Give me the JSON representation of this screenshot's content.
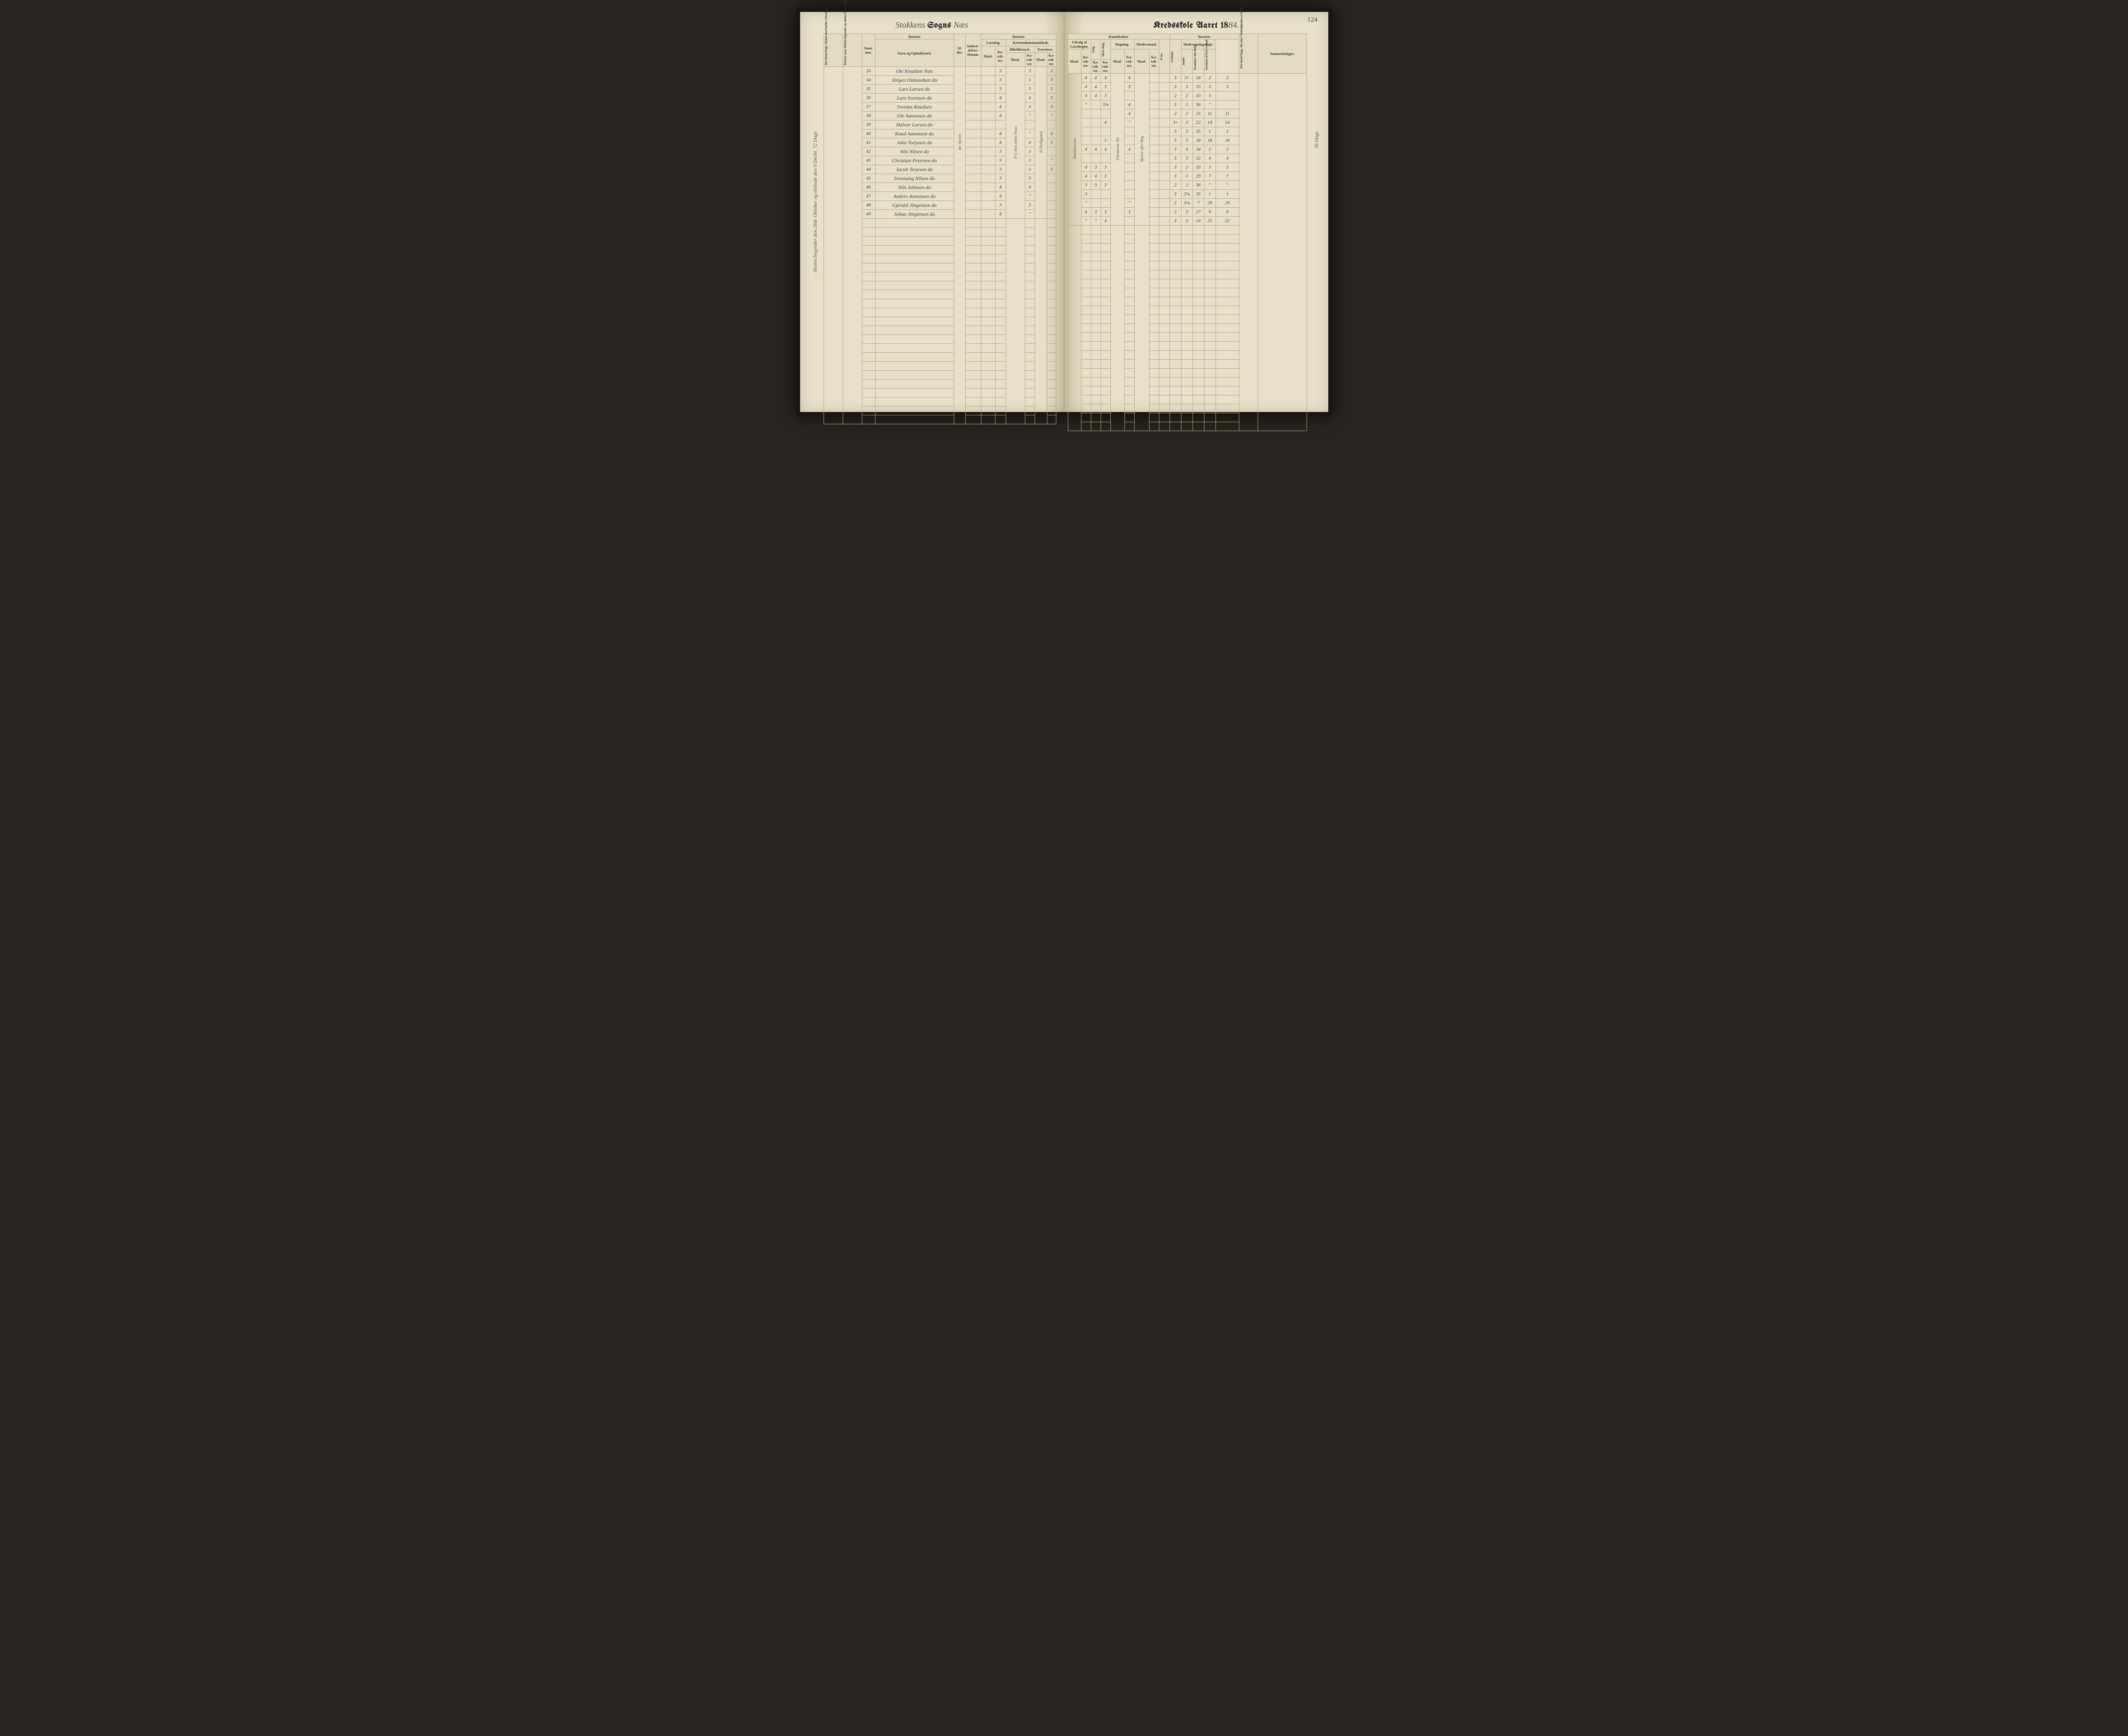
{
  "pageNumber": "124",
  "titleLeft": {
    "script": "Stokkens",
    "print1": "Sogns",
    "script2": "Næs"
  },
  "titleRight": {
    "print": "Kredsskole Aaret 18",
    "year": "84."
  },
  "headersLeft": {
    "col1": "Det Antal Dage, Skolen skal holdes i Kredsen.",
    "col2": "Datum, naar Skolen begynder og slutter hver Omgang.",
    "nummer": "Num-mer.",
    "barnets": "Barnets",
    "navn": "Navn og Opholdssted.",
    "alder": "Al-der.",
    "indtr": "Indtræ-delses-Datum.",
    "barnets2": "Barnets",
    "laesning": "Læsning.",
    "kristendom": "Kristendomskundskab.",
    "maal": "Maal.",
    "karakter": "Ka-rak-ter.",
    "bibel": "Bibelhistorie.",
    "troes": "Troeslære."
  },
  "headersRight": {
    "kundskaber": "Kundskaber.",
    "udvalg": "Udvalg af Læsebogen.",
    "sang": "Sang.",
    "skriv": "Skriv-ning.",
    "regning": "Regning.",
    "modersmaal": "Modersmaal.",
    "barnets": "Barnets",
    "evne": "Evne.",
    "forhold": "Forhold.",
    "skolesog": "Skolesøgningsdage.",
    "mode": "mødte",
    "forsH": "forsømte i det Hele.",
    "forsL": "forsømte af lovl. Grund.",
    "antal": "Det Antal Dage, Sko-len i Virkeligheden er holdt.",
    "anm": "Anmærkninger.",
    "maal": "Maal.",
    "kar": "Ka-rak-ter."
  },
  "sideNoteLeft": "Skolen begynder den 28de Oktober og sluttede den 9 Decbr.    72 Dage",
  "sideNoteRight": "36 Dage",
  "vertNotes": {
    "col_alder": "for Skolen",
    "col_bibel": "Fra Jesu sidste Paas-",
    "col_troes": "til Helligaand",
    "col_udvalg": "Skandinavien",
    "col_regning": "Ubenævnte Tal",
    "col_moders": "Skriver efter Bog"
  },
  "rows": [
    {
      "n": "33",
      "name": "Ole Knudsen Næs",
      "l": "3",
      "b": "3",
      "t": "3",
      "um": "4",
      "uk": "4",
      "sa": "4",
      "re": "4",
      "ev": "3",
      "fo": "3÷",
      "md": "34",
      "fh": "2",
      "fl": "2"
    },
    {
      "n": "34",
      "name": "Jörgen Osmundsen do",
      "l": "3",
      "b": "3",
      "t": "3",
      "um": "4",
      "uk": "4",
      "sa": "3",
      "re": "3",
      "ev": "3",
      "fo": "3",
      "md": "33",
      "fh": "3",
      "fl": "3"
    },
    {
      "n": "35",
      "name": "Lars Larsen do",
      "l": "3",
      "b": "3",
      "t": "3",
      "um": "4",
      "uk": "4",
      "sa": "3",
      "re": "",
      "ev": "2",
      "fo": "2",
      "md": "33",
      "fh": "3",
      "fl": ""
    },
    {
      "n": "36",
      "name": "Lars Sveinsen do",
      "l": "4",
      "b": "4",
      "t": "3",
      "um": "\"",
      "uk": "",
      "sa": "3¾",
      "re": "4",
      "ev": "3",
      "fo": "3",
      "md": "36",
      "fh": "\"",
      "fl": ""
    },
    {
      "n": "37",
      "name": "Svenius Knudsen",
      "l": "4",
      "b": "4",
      "t": "3",
      "um": "",
      "uk": "",
      "sa": "",
      "re": "4",
      "ev": "2",
      "fo": "2",
      "md": "25",
      "fh": "11",
      "fl": "11"
    },
    {
      "n": "38",
      "name": "Ole Aanonsen do",
      "l": "4",
      "b": "\"",
      "t": "\"",
      "um": "",
      "uk": "",
      "sa": "4",
      "re": "\"",
      "ev": "3÷",
      "fo": "3",
      "md": "22",
      "fh": "14",
      "fl": "14"
    },
    {
      "n": "39",
      "name": "Halvor Larsen do",
      "l": "",
      "b": "",
      "t": "",
      "um": "",
      "uk": "",
      "sa": "",
      "re": "",
      "ev": "3",
      "fo": "3",
      "md": "35",
      "fh": "1",
      "fl": "1"
    },
    {
      "n": "40",
      "name": "Knud Aanonsen do",
      "l": "4",
      "b": "\"",
      "t": "4",
      "um": "",
      "uk": "",
      "sa": "5",
      "re": "",
      "ev": "5",
      "fo": "5",
      "md": "18",
      "fh": "18",
      "fl": "18"
    },
    {
      "n": "41",
      "name": "John Torjusen do",
      "l": "4",
      "b": "4",
      "t": "3",
      "um": "4",
      "uk": "4",
      "sa": "4",
      "re": "4",
      "ev": "3",
      "fo": "4",
      "md": "34",
      "fh": "2",
      "fl": "2"
    },
    {
      "n": "42",
      "name": "Nils Nilsen do",
      "l": "3",
      "b": "3",
      "t": "",
      "um": "",
      "uk": "",
      "sa": "",
      "re": "",
      "ev": "3",
      "fo": "3",
      "md": "32",
      "fh": "4",
      "fl": "4"
    },
    {
      "n": "43",
      "name": "Christian Petersen do",
      "l": "3",
      "b": "3",
      "t": "\"",
      "um": "4",
      "uk": "3",
      "sa": "3",
      "re": "",
      "ev": "3",
      "fo": "2",
      "md": "33",
      "fh": "3",
      "fl": "3"
    },
    {
      "n": "44",
      "name": "Jacob Terjesen do",
      "l": "3",
      "b": "3",
      "t": "3",
      "um": "4",
      "uk": "4",
      "sa": "3",
      "re": "",
      "ev": "3",
      "fo": "3",
      "md": "29",
      "fh": "7",
      "fl": "7"
    },
    {
      "n": "45",
      "name": "Svennung Nilsen do",
      "l": "3",
      "b": "3",
      "t": "",
      "um": "3",
      "uk": "3",
      "sa": "3",
      "re": "",
      "ev": "2",
      "fo": "2",
      "md": "36",
      "fh": "\"",
      "fl": "\""
    },
    {
      "n": "46",
      "name": "Nils Johnsen do",
      "l": "4",
      "b": "4",
      "t": "",
      "um": "3",
      "uk": "",
      "sa": "",
      "re": "",
      "ev": "3",
      "fo": "3¼",
      "md": "35",
      "fh": "1",
      "fl": "1"
    },
    {
      "n": "47",
      "name": "Anders Aanonsen do",
      "l": "4",
      "b": "\"",
      "t": "",
      "um": "\"",
      "uk": "",
      "sa": "",
      "re": "\"",
      "ev": "2",
      "fo": "3¼",
      "md": "7",
      "fh": "29",
      "fl": "29"
    },
    {
      "n": "48",
      "name": "Gjeruld Jörgensen do",
      "l": "3",
      "b": "3",
      "t": "",
      "um": "4",
      "uk": "3",
      "sa": "3",
      "re": "3",
      "ev": "2",
      "fo": "3",
      "md": "27",
      "fh": "9",
      "fl": "9"
    },
    {
      "n": "49",
      "name": "Johan Jörgensen do",
      "l": "4",
      "b": "\"",
      "t": "",
      "um": "\"",
      "uk": "\"",
      "sa": "4",
      "re": "",
      "ev": "3",
      "fo": "3",
      "md": "14",
      "fh": "22",
      "fl": "22"
    }
  ],
  "emptyRows": 23
}
